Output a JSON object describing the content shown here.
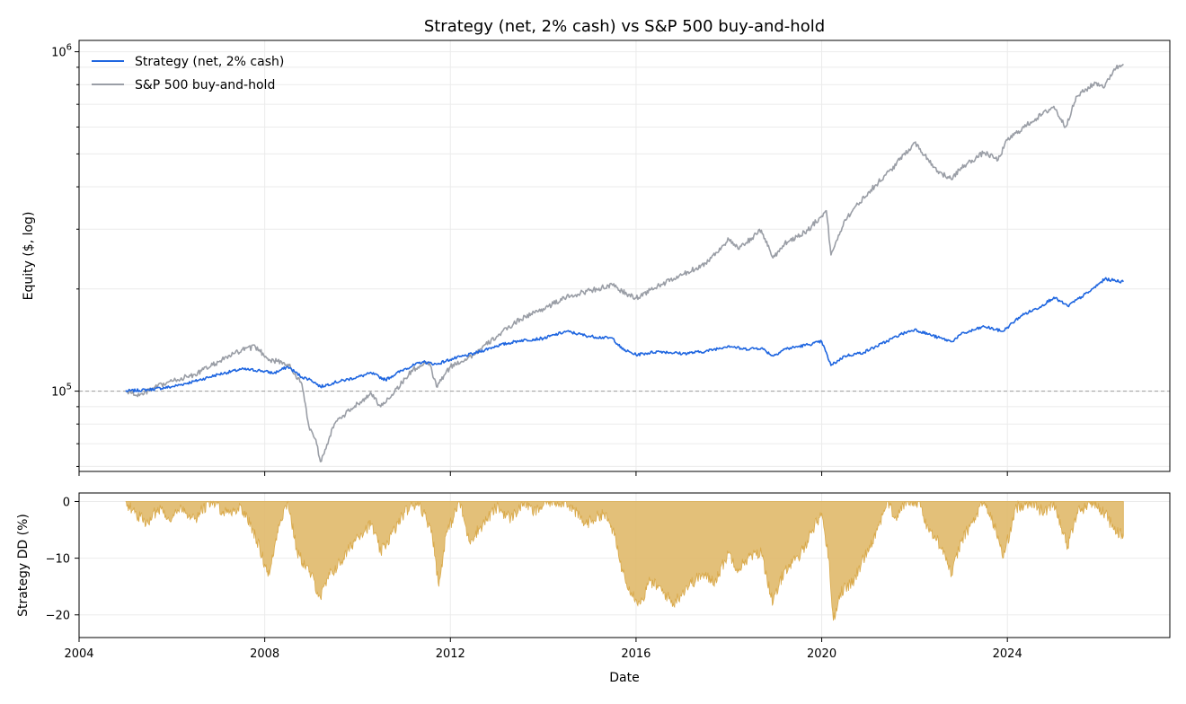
{
  "colors": {
    "strategy": "#1f66e0",
    "sp500": "#9a9ea6",
    "drawdown_fill": "#e0b96a",
    "drawdown_edge": "#d9a94a",
    "grid": "#ebebeb",
    "baseline": "#a6a6a6"
  },
  "chart_data": [
    {
      "type": "line",
      "title": "Strategy (net, 2% cash) vs S&P 500 buy-and-hold",
      "ylabel": "Equity ($, log)",
      "yscale": "log",
      "xlim": [
        2004,
        2027.5
      ],
      "ylim": [
        58000,
        1080000
      ],
      "y_major_ticks": [
        {
          "value": 100000,
          "base": "10",
          "exp": "5"
        },
        {
          "value": 1000000,
          "base": "10",
          "exp": "6"
        }
      ],
      "reference_line": {
        "y": 100000,
        "style": "dashed"
      },
      "grid": true,
      "legend": "upper-left",
      "series": [
        {
          "name": "Strategy (net, 2% cash)",
          "color_key": "strategy",
          "points": [
            [
              2005.0,
              100000
            ],
            [
              2005.5,
              101000
            ],
            [
              2006.0,
              103000
            ],
            [
              2006.5,
              107000
            ],
            [
              2007.0,
              112000
            ],
            [
              2007.5,
              116000
            ],
            [
              2007.9,
              115000
            ],
            [
              2008.2,
              113000
            ],
            [
              2008.5,
              118000
            ],
            [
              2008.8,
              110000
            ],
            [
              2009.0,
              108000
            ],
            [
              2009.2,
              103000
            ],
            [
              2009.5,
              106000
            ],
            [
              2010.0,
              110000
            ],
            [
              2010.3,
              113000
            ],
            [
              2010.6,
              108000
            ],
            [
              2011.0,
              116000
            ],
            [
              2011.4,
              122000
            ],
            [
              2011.7,
              120000
            ],
            [
              2012.0,
              124000
            ],
            [
              2012.5,
              129000
            ],
            [
              2013.0,
              136000
            ],
            [
              2013.5,
              141000
            ],
            [
              2014.0,
              143000
            ],
            [
              2014.5,
              150000
            ],
            [
              2015.0,
              145000
            ],
            [
              2015.5,
              143000
            ],
            [
              2015.7,
              133000
            ],
            [
              2016.0,
              128000
            ],
            [
              2016.5,
              131000
            ],
            [
              2017.0,
              129000
            ],
            [
              2017.5,
              131000
            ],
            [
              2018.0,
              136000
            ],
            [
              2018.3,
              133000
            ],
            [
              2018.7,
              134000
            ],
            [
              2018.95,
              127000
            ],
            [
              2019.2,
              133000
            ],
            [
              2019.7,
              137000
            ],
            [
              2020.0,
              140000
            ],
            [
              2020.2,
              119000
            ],
            [
              2020.5,
              127000
            ],
            [
              2020.9,
              130000
            ],
            [
              2021.3,
              138000
            ],
            [
              2021.7,
              147000
            ],
            [
              2022.0,
              152000
            ],
            [
              2022.5,
              144000
            ],
            [
              2022.8,
              140000
            ],
            [
              2023.0,
              147000
            ],
            [
              2023.5,
              155000
            ],
            [
              2023.9,
              150000
            ],
            [
              2024.3,
              167000
            ],
            [
              2024.7,
              177000
            ],
            [
              2025.0,
              189000
            ],
            [
              2025.3,
              178000
            ],
            [
              2025.8,
              198000
            ],
            [
              2026.1,
              214000
            ],
            [
              2026.5,
              210000
            ]
          ]
        },
        {
          "name": "S&P 500 buy-and-hold",
          "color_key": "sp500",
          "points": [
            [
              2005.0,
              100000
            ],
            [
              2005.3,
              97000
            ],
            [
              2005.6,
              102000
            ],
            [
              2006.0,
              107000
            ],
            [
              2006.5,
              112000
            ],
            [
              2007.0,
              122000
            ],
            [
              2007.5,
              132000
            ],
            [
              2007.8,
              135000
            ],
            [
              2008.1,
              124000
            ],
            [
              2008.5,
              120000
            ],
            [
              2008.8,
              105000
            ],
            [
              2008.95,
              79000
            ],
            [
              2009.1,
              72000
            ],
            [
              2009.2,
              62000
            ],
            [
              2009.5,
              80000
            ],
            [
              2010.0,
              92000
            ],
            [
              2010.3,
              98000
            ],
            [
              2010.5,
              90000
            ],
            [
              2010.8,
              100000
            ],
            [
              2011.2,
              116000
            ],
            [
              2011.55,
              121000
            ],
            [
              2011.7,
              103000
            ],
            [
              2012.0,
              118000
            ],
            [
              2012.5,
              128000
            ],
            [
              2013.0,
              145000
            ],
            [
              2013.5,
              163000
            ],
            [
              2014.0,
              175000
            ],
            [
              2014.5,
              189000
            ],
            [
              2015.0,
              198000
            ],
            [
              2015.5,
              205000
            ],
            [
              2015.8,
              193000
            ],
            [
              2016.0,
              188000
            ],
            [
              2016.5,
              205000
            ],
            [
              2017.0,
              220000
            ],
            [
              2017.5,
              238000
            ],
            [
              2018.0,
              280000
            ],
            [
              2018.2,
              262000
            ],
            [
              2018.7,
              298000
            ],
            [
              2018.95,
              247000
            ],
            [
              2019.2,
              272000
            ],
            [
              2019.7,
              298000
            ],
            [
              2020.1,
              340000
            ],
            [
              2020.2,
              252000
            ],
            [
              2020.5,
              320000
            ],
            [
              2021.0,
              385000
            ],
            [
              2021.5,
              450000
            ],
            [
              2022.0,
              540000
            ],
            [
              2022.5,
              445000
            ],
            [
              2022.8,
              420000
            ],
            [
              2023.0,
              455000
            ],
            [
              2023.5,
              505000
            ],
            [
              2023.8,
              480000
            ],
            [
              2024.0,
              550000
            ],
            [
              2024.5,
              620000
            ],
            [
              2025.0,
              690000
            ],
            [
              2025.25,
              600000
            ],
            [
              2025.5,
              740000
            ],
            [
              2025.9,
              810000
            ],
            [
              2026.1,
              790000
            ],
            [
              2026.3,
              890000
            ],
            [
              2026.5,
              920000
            ]
          ]
        }
      ]
    },
    {
      "type": "area",
      "xlabel": "Date",
      "ylabel": "Strategy DD (%)",
      "xlim": [
        2004,
        2027.5
      ],
      "ylim": [
        -24,
        1.5
      ],
      "y_ticks": [
        0,
        -10,
        -20
      ],
      "x_ticks": [
        2004,
        2008,
        2012,
        2016,
        2020,
        2024
      ],
      "x_tick_labels": [
        "2004",
        "2008",
        "2012",
        "2016",
        "2020",
        "2024"
      ],
      "grid": true,
      "series": [
        {
          "name": "Strategy drawdown",
          "color_key": "drawdown_fill",
          "points": [
            [
              2005.0,
              0
            ],
            [
              2005.2,
              -2
            ],
            [
              2005.5,
              -4
            ],
            [
              2005.7,
              -1
            ],
            [
              2006.0,
              -3
            ],
            [
              2006.2,
              -1
            ],
            [
              2006.5,
              -3
            ],
            [
              2006.8,
              0
            ],
            [
              2007.2,
              -2
            ],
            [
              2007.5,
              -1
            ],
            [
              2007.8,
              -6
            ],
            [
              2008.0,
              -11
            ],
            [
              2008.1,
              -13
            ],
            [
              2008.3,
              -4
            ],
            [
              2008.5,
              0
            ],
            [
              2008.7,
              -9
            ],
            [
              2009.0,
              -13
            ],
            [
              2009.2,
              -17
            ],
            [
              2009.4,
              -13
            ],
            [
              2009.7,
              -10
            ],
            [
              2010.0,
              -6
            ],
            [
              2010.3,
              -4
            ],
            [
              2010.5,
              -9
            ],
            [
              2010.8,
              -5
            ],
            [
              2011.0,
              -2
            ],
            [
              2011.3,
              0
            ],
            [
              2011.6,
              -5
            ],
            [
              2011.75,
              -15
            ],
            [
              2011.9,
              -6
            ],
            [
              2012.2,
              0
            ],
            [
              2012.4,
              -7
            ],
            [
              2012.7,
              -4
            ],
            [
              2013.0,
              -1
            ],
            [
              2013.3,
              -3
            ],
            [
              2013.6,
              0
            ],
            [
              2013.8,
              -2
            ],
            [
              2014.1,
              0
            ],
            [
              2014.5,
              0
            ],
            [
              2014.9,
              -4
            ],
            [
              2015.3,
              -2
            ],
            [
              2015.5,
              -5
            ],
            [
              2015.7,
              -12
            ],
            [
              2015.9,
              -16
            ],
            [
              2016.1,
              -18
            ],
            [
              2016.3,
              -14
            ],
            [
              2016.6,
              -16
            ],
            [
              2016.8,
              -18
            ],
            [
              2017.1,
              -15
            ],
            [
              2017.4,
              -13
            ],
            [
              2017.7,
              -14
            ],
            [
              2018.0,
              -9
            ],
            [
              2018.2,
              -12
            ],
            [
              2018.4,
              -10
            ],
            [
              2018.7,
              -9
            ],
            [
              2018.95,
              -18
            ],
            [
              2019.2,
              -12
            ],
            [
              2019.5,
              -10
            ],
            [
              2019.8,
              -5
            ],
            [
              2020.0,
              -2
            ],
            [
              2020.15,
              -10
            ],
            [
              2020.25,
              -21
            ],
            [
              2020.4,
              -16
            ],
            [
              2020.7,
              -14
            ],
            [
              2020.9,
              -10
            ],
            [
              2021.2,
              -5
            ],
            [
              2021.4,
              0
            ],
            [
              2021.6,
              -3
            ],
            [
              2021.8,
              0
            ],
            [
              2022.1,
              0
            ],
            [
              2022.3,
              -5
            ],
            [
              2022.6,
              -8
            ],
            [
              2022.8,
              -13
            ],
            [
              2023.0,
              -7
            ],
            [
              2023.3,
              -3
            ],
            [
              2023.5,
              0
            ],
            [
              2023.8,
              -6
            ],
            [
              2023.9,
              -10
            ],
            [
              2024.2,
              -1
            ],
            [
              2024.5,
              0
            ],
            [
              2024.8,
              -2
            ],
            [
              2025.0,
              0
            ],
            [
              2025.3,
              -8
            ],
            [
              2025.5,
              -2
            ],
            [
              2025.8,
              0
            ],
            [
              2026.1,
              -2
            ],
            [
              2026.3,
              -5
            ],
            [
              2026.5,
              -6
            ],
            [
              2026.5,
              0
            ]
          ]
        }
      ]
    }
  ]
}
